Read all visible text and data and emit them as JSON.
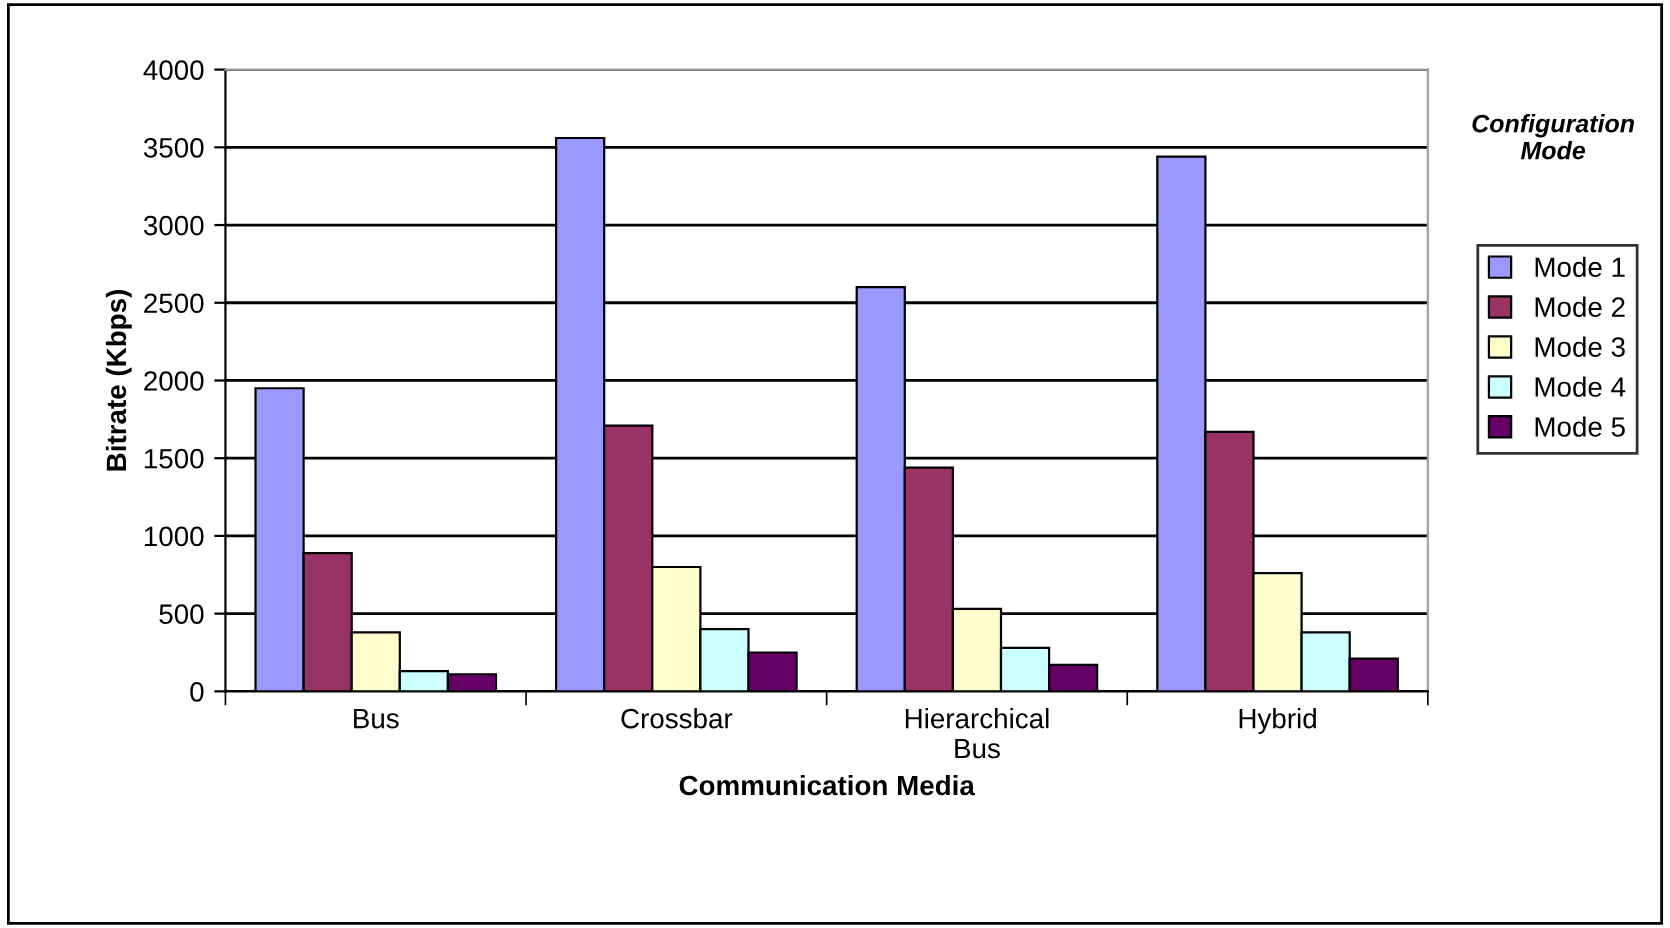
{
  "chart_data": {
    "type": "bar",
    "xlabel": "Communication Media",
    "ylabel": "Bitrate (Kbps)",
    "legend_title": "Configuration\nMode",
    "categories": [
      "Bus",
      "Crossbar",
      "Hierarchical\nBus",
      "Hybrid"
    ],
    "series": [
      {
        "name": "Mode 1",
        "color": "#9999ff",
        "values": [
          1950,
          3560,
          2600,
          3440
        ]
      },
      {
        "name": "Mode 2",
        "color": "#993366",
        "values": [
          890,
          1710,
          1440,
          1670
        ]
      },
      {
        "name": "Mode 3",
        "color": "#ffffcc",
        "values": [
          380,
          800,
          530,
          760
        ]
      },
      {
        "name": "Mode 4",
        "color": "#ccffff",
        "values": [
          130,
          400,
          280,
          380
        ]
      },
      {
        "name": "Mode 5",
        "color": "#660066",
        "values": [
          110,
          250,
          170,
          210
        ]
      }
    ],
    "ylim": [
      0,
      4000
    ],
    "yticks": [
      0,
      500,
      1000,
      1500,
      2000,
      2500,
      3000,
      3500,
      4000
    ],
    "grid": "y",
    "legend": "right"
  }
}
